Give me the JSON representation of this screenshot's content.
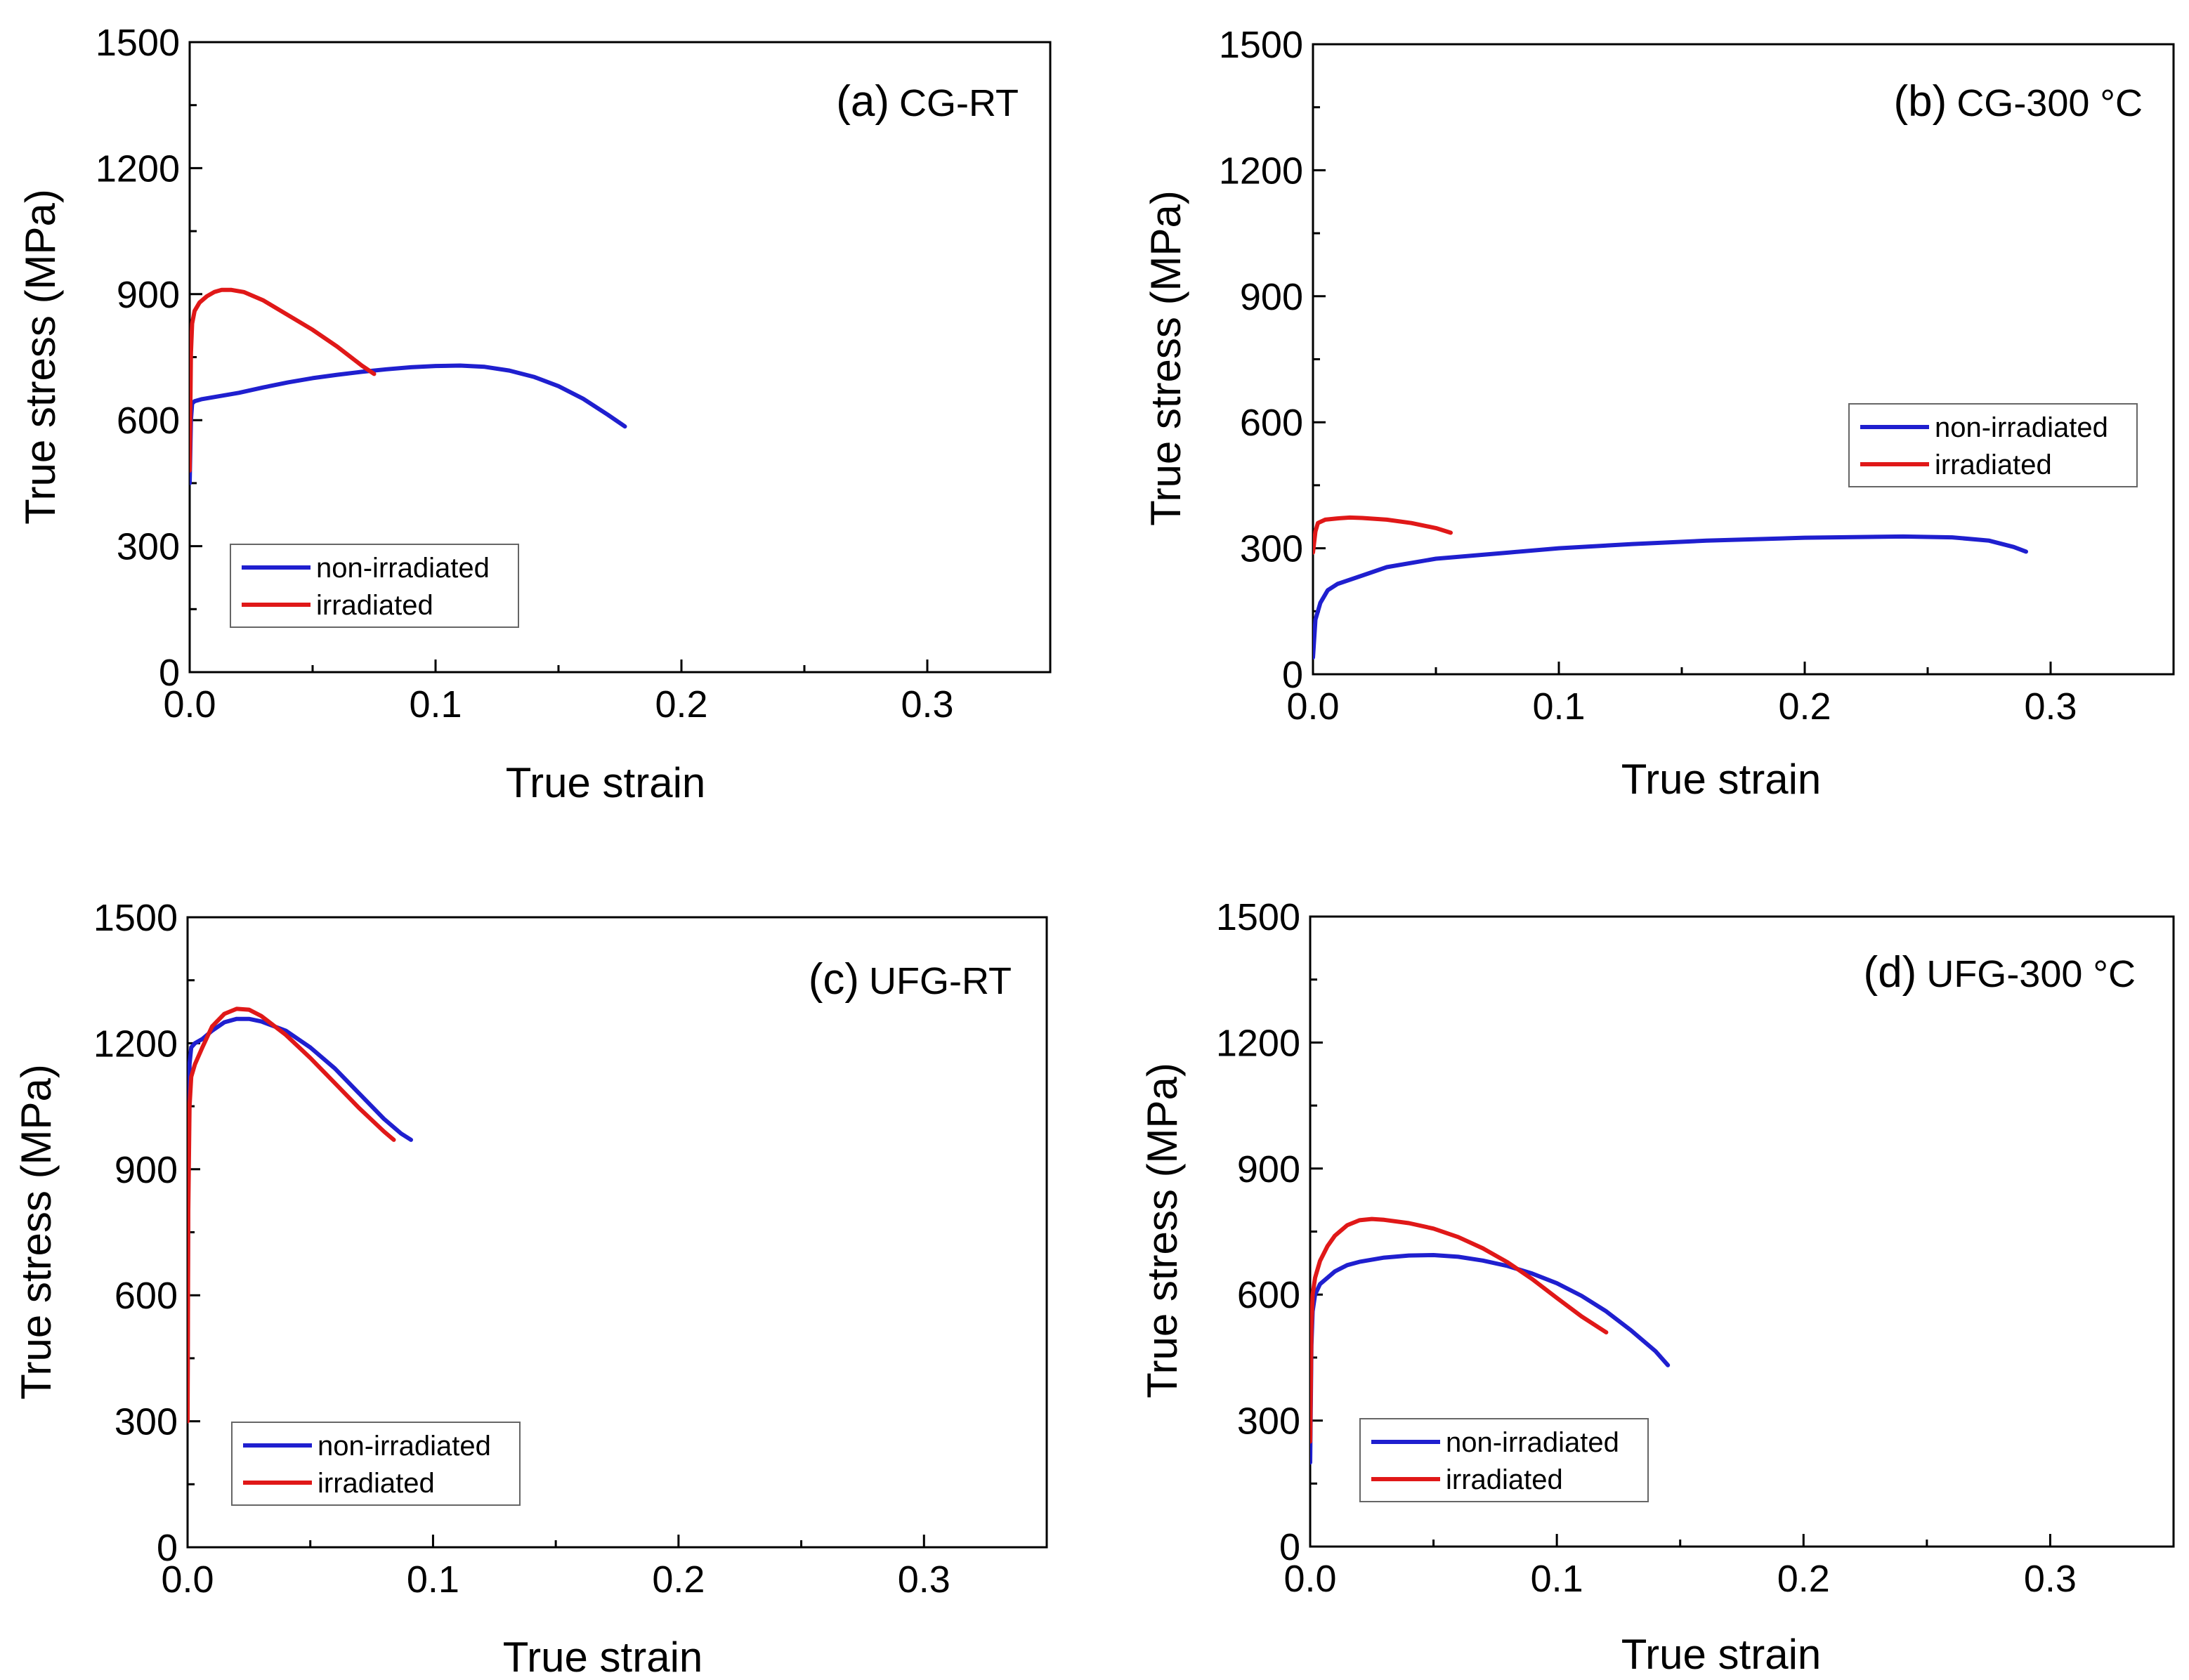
{
  "chart_data": [
    {
      "type": "line",
      "panel": "(a)",
      "title": "CG-RT",
      "xlabel": "True strain",
      "ylabel": "True stress (MPa)",
      "xlim": [
        0,
        0.35
      ],
      "ylim": [
        0,
        1500
      ],
      "xticks": [
        "0.0",
        "0.1",
        "0.2",
        "0.3"
      ],
      "yticks": [
        "0",
        "300",
        "600",
        "900",
        "1200",
        "1500"
      ],
      "legend": "bottom-left",
      "series": [
        {
          "name": "non-irradiated",
          "color": "#1f1fcf",
          "x": [
            0,
            0.0005,
            0.001,
            0.002,
            0.005,
            0.01,
            0.02,
            0.03,
            0.04,
            0.05,
            0.06,
            0.07,
            0.08,
            0.09,
            0.1,
            0.11,
            0.12,
            0.13,
            0.14,
            0.15,
            0.16,
            0.17,
            0.177
          ],
          "y": [
            450,
            600,
            640,
            645,
            650,
            655,
            665,
            678,
            690,
            700,
            708,
            715,
            721,
            726,
            729,
            730,
            727,
            718,
            703,
            681,
            651,
            613,
            585
          ]
        },
        {
          "name": "irradiated",
          "color": "#e01818",
          "x": [
            0,
            0.0005,
            0.001,
            0.002,
            0.004,
            0.007,
            0.01,
            0.013,
            0.017,
            0.022,
            0.03,
            0.04,
            0.05,
            0.06,
            0.07,
            0.075
          ],
          "y": [
            480,
            760,
            830,
            860,
            880,
            895,
            905,
            910,
            910,
            905,
            885,
            850,
            815,
            775,
            730,
            710
          ]
        }
      ]
    },
    {
      "type": "line",
      "panel": "(b)",
      "title": "CG-300 °C",
      "xlabel": "True strain",
      "ylabel": "True stress (MPa)",
      "xlim": [
        0,
        0.35
      ],
      "ylim": [
        0,
        1500
      ],
      "xticks": [
        "0.0",
        "0.1",
        "0.2",
        "0.3"
      ],
      "yticks": [
        "0",
        "300",
        "600",
        "900",
        "1200",
        "1500"
      ],
      "legend": "center-right",
      "series": [
        {
          "name": "non-irradiated",
          "color": "#1f1fcf",
          "x": [
            0,
            0.001,
            0.003,
            0.006,
            0.01,
            0.02,
            0.03,
            0.05,
            0.08,
            0.1,
            0.13,
            0.16,
            0.2,
            0.24,
            0.26,
            0.275,
            0.285,
            0.29
          ],
          "y": [
            40,
            130,
            170,
            200,
            215,
            235,
            255,
            275,
            290,
            300,
            310,
            318,
            325,
            328,
            326,
            318,
            303,
            292
          ]
        },
        {
          "name": "irradiated",
          "color": "#e01818",
          "x": [
            0,
            0.001,
            0.002,
            0.005,
            0.01,
            0.015,
            0.02,
            0.03,
            0.04,
            0.05,
            0.056
          ],
          "y": [
            290,
            340,
            360,
            368,
            371,
            373,
            372,
            368,
            360,
            348,
            337
          ]
        }
      ]
    },
    {
      "type": "line",
      "panel": "(c)",
      "title": "UFG-RT",
      "xlabel": "True strain",
      "ylabel": "True stress (MPa)",
      "xlim": [
        0,
        0.35
      ],
      "ylim": [
        0,
        1500
      ],
      "xticks": [
        "0.0",
        "0.1",
        "0.2",
        "0.3"
      ],
      "yticks": [
        "0",
        "300",
        "600",
        "900",
        "1200",
        "1500"
      ],
      "legend": "bottom-left",
      "series": [
        {
          "name": "non-irradiated",
          "color": "#1f1fcf",
          "x": [
            0,
            0.0003,
            0.0008,
            0.0015,
            0.003,
            0.006,
            0.01,
            0.015,
            0.02,
            0.025,
            0.03,
            0.04,
            0.05,
            0.06,
            0.07,
            0.08,
            0.087,
            0.091
          ],
          "y": [
            380,
            900,
            1150,
            1190,
            1200,
            1210,
            1230,
            1250,
            1258,
            1258,
            1252,
            1230,
            1190,
            1140,
            1080,
            1020,
            985,
            970
          ]
        },
        {
          "name": "irradiated",
          "color": "#e01818",
          "x": [
            0,
            0.0003,
            0.0008,
            0.0015,
            0.003,
            0.006,
            0.01,
            0.015,
            0.02,
            0.025,
            0.03,
            0.04,
            0.05,
            0.06,
            0.07,
            0.08,
            0.084
          ],
          "y": [
            300,
            800,
            1050,
            1120,
            1150,
            1190,
            1240,
            1270,
            1282,
            1280,
            1265,
            1220,
            1165,
            1105,
            1045,
            990,
            970
          ]
        }
      ]
    },
    {
      "type": "line",
      "panel": "(d)",
      "title": "UFG-300 °C",
      "xlabel": "True strain",
      "ylabel": "True stress (MPa)",
      "xlim": [
        0,
        0.35
      ],
      "ylim": [
        0,
        1500
      ],
      "xticks": [
        "0.0",
        "0.1",
        "0.2",
        "0.3"
      ],
      "yticks": [
        "0",
        "300",
        "600",
        "900",
        "1200",
        "1500"
      ],
      "legend": "bottom-left",
      "series": [
        {
          "name": "non-irradiated",
          "color": "#1f1fcf",
          "x": [
            0,
            0.0005,
            0.001,
            0.002,
            0.004,
            0.007,
            0.01,
            0.015,
            0.02,
            0.03,
            0.04,
            0.05,
            0.06,
            0.07,
            0.08,
            0.09,
            0.1,
            0.11,
            0.12,
            0.13,
            0.14,
            0.145
          ],
          "y": [
            200,
            480,
            560,
            600,
            625,
            640,
            655,
            670,
            678,
            688,
            693,
            694,
            690,
            681,
            668,
            650,
            627,
            597,
            560,
            515,
            465,
            432
          ]
        },
        {
          "name": "irradiated",
          "color": "#e01818",
          "x": [
            0,
            0.0005,
            0.001,
            0.002,
            0.004,
            0.007,
            0.01,
            0.015,
            0.02,
            0.025,
            0.03,
            0.04,
            0.05,
            0.06,
            0.07,
            0.08,
            0.09,
            0.1,
            0.11,
            0.12
          ],
          "y": [
            250,
            520,
            600,
            640,
            680,
            715,
            740,
            765,
            777,
            780,
            778,
            770,
            757,
            737,
            710,
            677,
            637,
            592,
            548,
            510
          ]
        }
      ]
    }
  ]
}
